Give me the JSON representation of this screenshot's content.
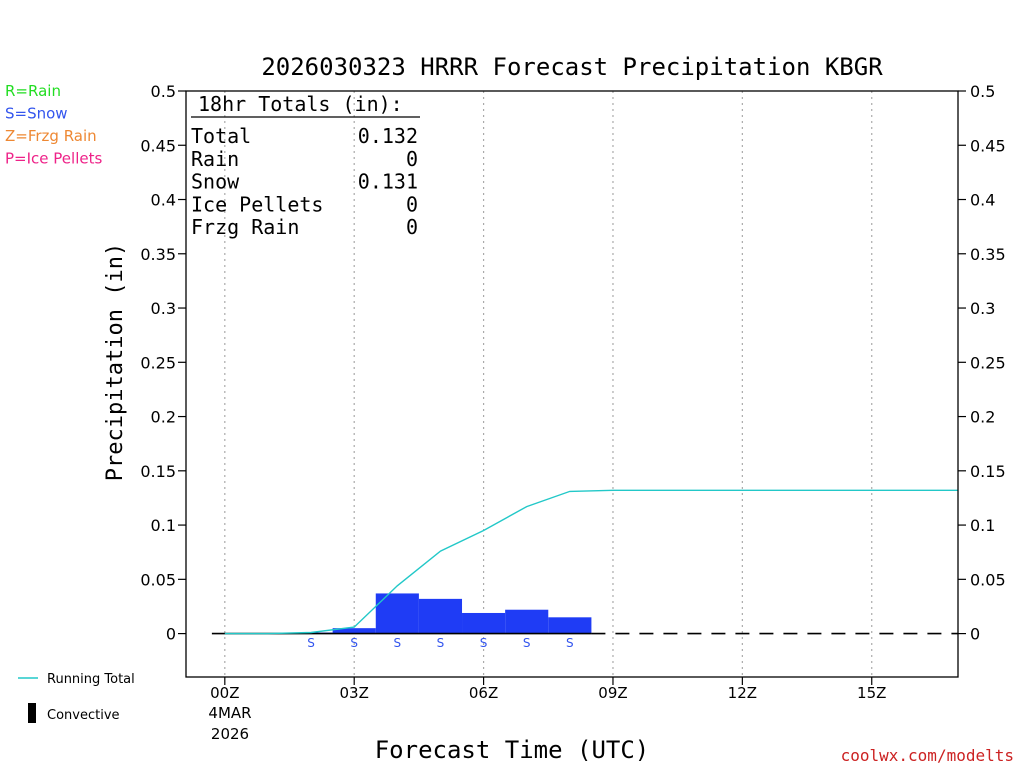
{
  "title": "2026030323 HRRR Forecast Precipitation KBGR",
  "ylabel": "Precipitation (in)",
  "xlabel": "Forecast Time (UTC)",
  "credit": "coolwx.com/modelts",
  "colors": {
    "rain": "#22dd22",
    "snow": "#3355ee",
    "frzg_rain": "#ee8833",
    "ice_pellets": "#ee2288",
    "bar_snow": "#1f3cf5",
    "running_total": "#22c8c8",
    "credit": "#cc2222"
  },
  "legend_left": [
    {
      "text": "R=Rain",
      "color": "#22dd22"
    },
    {
      "text": "S=Snow",
      "color": "#3355ee"
    },
    {
      "text": "Z=Frzg Rain",
      "color": "#ee8833"
    },
    {
      "text": "P=Ice Pellets",
      "color": "#ee2288"
    }
  ],
  "legend_bottom": {
    "running_total": "Running Total",
    "convective": "Convective"
  },
  "totals": {
    "header": "18hr Totals (in):",
    "rows": [
      {
        "label": "Total",
        "value": "0.132"
      },
      {
        "label": "Rain",
        "value": "0"
      },
      {
        "label": "Snow",
        "value": "0.131"
      },
      {
        "label": "Ice Pellets",
        "value": "0"
      },
      {
        "label": "Frzg Rain",
        "value": "0"
      }
    ]
  },
  "chart_data": {
    "type": "bar",
    "title": "2026030323 HRRR Forecast Precipitation KBGR",
    "xlabel": "Forecast Time (UTC)",
    "ylabel": "Precipitation (in)",
    "ylim": [
      -0.04,
      0.5
    ],
    "xlim": [
      -0.9,
      17
    ],
    "y_ticks": [
      0,
      0.05,
      0.1,
      0.15,
      0.2,
      0.25,
      0.3,
      0.35,
      0.4,
      0.45,
      0.5
    ],
    "y_tick_labels": [
      "0",
      "0.05",
      "0.1",
      "0.15",
      "0.2",
      "0.25",
      "0.3",
      "0.35",
      "0.4",
      "0.45",
      "0.5"
    ],
    "x_ticks": [
      0,
      3,
      6,
      9,
      12,
      15
    ],
    "x_tick_labels": [
      "00Z",
      "03Z",
      "06Z",
      "09Z",
      "12Z",
      "15Z"
    ],
    "x_sublabels": [
      "4MAR",
      "2026"
    ],
    "grid": "vertical dotted",
    "hourly_precip": {
      "hours": [
        1,
        2,
        3,
        4,
        5,
        6,
        7,
        8
      ],
      "values": [
        0.0,
        0.001,
        0.005,
        0.037,
        0.032,
        0.019,
        0.022,
        0.015
      ]
    },
    "running_total": {
      "name": "Running Total",
      "x": [
        0,
        1,
        2,
        3,
        4,
        5,
        6,
        7,
        8,
        9,
        10,
        11,
        12,
        13,
        14,
        15,
        16,
        17
      ],
      "y": [
        0.0,
        0.0,
        0.001,
        0.006,
        0.044,
        0.076,
        0.095,
        0.117,
        0.131,
        0.132,
        0.132,
        0.132,
        0.132,
        0.132,
        0.132,
        0.132,
        0.132,
        0.132
      ]
    },
    "precip_type_markers": {
      "hours": [
        2,
        3,
        4,
        5,
        6,
        7,
        8
      ],
      "labels": [
        "S",
        "S",
        "S",
        "S",
        "S",
        "S",
        "S"
      ]
    }
  }
}
